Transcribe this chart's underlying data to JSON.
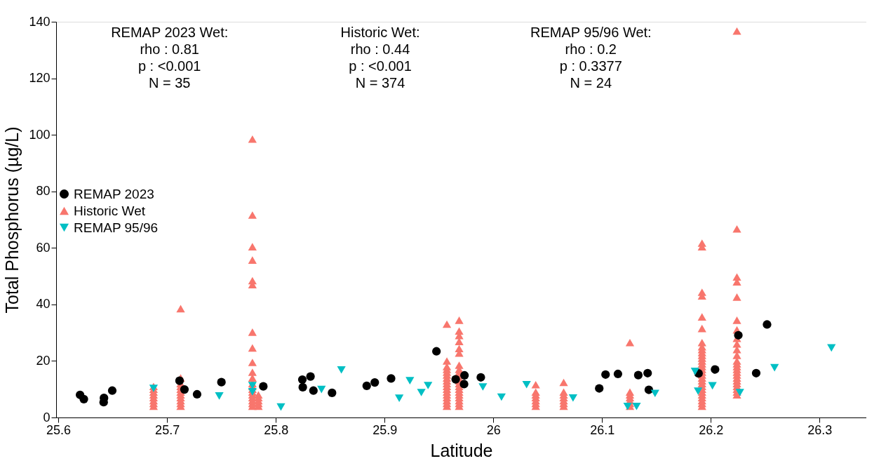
{
  "chart_data": {
    "type": "scatter",
    "xlabel": "Latitude",
    "ylabel": "Total Phosphorus (µg/L)",
    "xlim": [
      25.598,
      26.343
    ],
    "xticks": [
      25.6,
      25.7,
      25.8,
      25.9,
      26,
      26.1,
      26.2,
      26.3
    ],
    "ylim": [
      0,
      140
    ],
    "yticks": [
      0,
      20,
      40,
      60,
      80,
      100,
      120,
      140
    ],
    "grid": false,
    "legend": "left",
    "annotations": [
      "REMAP 2023 Wet:\nrho :  0.81\np :  <0.001\nN =  35",
      "Historic Wet:\nrho :  0.44\np :  <0.001\nN =  374",
      "REMAP 95/96 Wet:\nrho :  0.2\np :  0.3377\nN =  24"
    ],
    "series": [
      {
        "name": "REMAP 2023",
        "color": "#000000",
        "marker": "circle",
        "x": [
          25.62,
          25.6235,
          25.6417,
          25.642,
          25.6496,
          25.7115,
          25.716,
          25.7276,
          25.75,
          25.7885,
          25.8244,
          25.8248,
          25.8319,
          25.8346,
          25.8517,
          25.8836,
          25.891,
          25.906,
          25.9477,
          25.9654,
          25.9735,
          25.9731,
          25.9885,
          26.0974,
          26.1032,
          26.1146,
          26.1333,
          26.1419,
          26.143,
          26.1887,
          26.2039,
          26.2253,
          26.2417,
          26.2517
        ],
        "values": [
          8.0,
          6.5,
          5.4,
          6.9,
          9.5,
          13.0,
          9.9,
          8.2,
          12.5,
          11.0,
          13.4,
          10.7,
          14.5,
          9.5,
          8.7,
          11.2,
          12.4,
          13.8,
          23.4,
          13.5,
          14.9,
          11.8,
          14.2,
          10.3,
          15.2,
          15.4,
          15.0,
          15.7,
          9.8,
          15.6,
          17.0,
          29.1,
          15.7,
          32.9
        ]
      },
      {
        "name": "Historic Wet",
        "color": "#f8766d",
        "marker": "triangle",
        "x": [
          25.6876,
          25.6876,
          25.6876,
          25.6876,
          25.6876,
          25.6876,
          25.6876,
          25.6876,
          25.7125,
          25.7125,
          25.7125,
          25.7125,
          25.7125,
          25.7125,
          25.7125,
          25.7125,
          25.7125,
          25.7125,
          25.7125,
          25.7785,
          25.7785,
          25.7785,
          25.7785,
          25.7785,
          25.7785,
          25.7785,
          25.7785,
          25.7785,
          25.7785,
          25.7785,
          25.7785,
          25.7785,
          25.7785,
          25.7785,
          25.7785,
          25.7785,
          25.7785,
          25.7785,
          25.7785,
          25.784,
          25.784,
          25.784,
          25.784,
          25.784,
          25.9573,
          25.9573,
          25.9573,
          25.9573,
          25.9573,
          25.9573,
          25.9573,
          25.9573,
          25.9573,
          25.9573,
          25.9573,
          25.9573,
          25.9573,
          25.9573,
          25.9573,
          25.9573,
          25.9573,
          25.9686,
          25.9686,
          25.9686,
          25.9686,
          25.9686,
          25.9686,
          25.9686,
          25.9686,
          25.9686,
          25.9686,
          25.9686,
          25.9686,
          25.9686,
          25.9686,
          25.9686,
          25.9686,
          25.9686,
          25.9686,
          25.9686,
          25.9686,
          25.9686,
          26.039,
          26.039,
          26.039,
          26.039,
          26.039,
          26.039,
          26.039,
          26.0647,
          26.0647,
          26.0647,
          26.0647,
          26.0647,
          26.0647,
          26.0647,
          26.1256,
          26.1256,
          26.1256,
          26.1256,
          26.1256,
          26.1256,
          26.1256,
          26.1919,
          26.1919,
          26.1919,
          26.1919,
          26.1919,
          26.1919,
          26.1919,
          26.1919,
          26.1919,
          26.1919,
          26.1919,
          26.1919,
          26.1919,
          26.1919,
          26.1919,
          26.1919,
          26.1919,
          26.1919,
          26.1919,
          26.1919,
          26.1919,
          26.1919,
          26.1919,
          26.1919,
          26.1919,
          26.1919,
          26.1919,
          26.1919,
          26.1919,
          26.224,
          26.224,
          26.224,
          26.224,
          26.224,
          26.224,
          26.224,
          26.224,
          26.224,
          26.224,
          26.224,
          26.224,
          26.224,
          26.224,
          26.224,
          26.224,
          26.224,
          26.224,
          26.224,
          26.224,
          26.224,
          26.224,
          26.224,
          26.224
        ],
        "values": [
          4,
          5,
          6,
          7,
          8,
          9,
          10,
          11,
          4,
          5,
          6,
          7,
          8,
          9,
          10,
          11,
          12,
          14,
          38.5,
          4,
          5,
          6,
          7,
          8,
          9,
          10,
          11,
          12,
          14,
          16,
          19.5,
          24.6,
          30.2,
          47,
          48.4,
          55.7,
          60.4,
          71.6,
          98.5,
          4,
          5,
          6,
          7,
          8,
          4,
          5,
          6,
          7,
          8,
          9,
          10,
          11,
          12,
          13,
          14,
          15,
          16,
          17,
          18,
          20,
          33,
          4,
          5,
          6,
          7,
          8,
          9,
          10,
          11,
          12,
          13,
          14,
          15,
          16,
          17,
          18.5,
          22.8,
          24.4,
          26.9,
          29,
          30.6,
          34.4,
          4,
          5,
          6,
          7,
          8,
          9,
          11.6,
          4,
          5,
          6,
          7,
          8,
          9,
          12.4,
          4,
          5,
          6,
          7,
          8,
          9,
          26.5,
          4,
          5,
          6,
          7,
          8,
          9,
          10,
          11,
          12,
          13,
          14,
          15,
          16,
          17,
          18,
          19,
          20,
          21,
          22,
          23,
          24,
          25,
          26.5,
          31.5,
          35.6,
          43,
          44.3,
          60.4,
          61.7,
          8,
          9,
          10,
          11,
          12,
          13,
          14,
          15,
          16,
          17,
          18,
          19,
          20,
          22,
          24,
          26,
          28,
          31,
          34.4,
          42.6,
          48,
          49.7,
          66.7,
          136.7
        ]
      },
      {
        "name": "REMAP 95/96",
        "color": "#00bfc4",
        "marker": "triangle-down",
        "x": [
          25.6876,
          25.748,
          25.7785,
          25.7785,
          25.8047,
          25.842,
          25.8603,
          25.9135,
          25.9233,
          25.9338,
          25.94,
          25.9904,
          26.0075,
          26.0306,
          26.0733,
          26.1235,
          26.1317,
          26.1487,
          26.1855,
          26.1883,
          26.2015,
          26.2267,
          26.2586,
          26.3109
        ],
        "values": [
          10.3,
          7.6,
          11.3,
          9.1,
          3.7,
          9.9,
          16.8,
          6.8,
          13.0,
          8.8,
          11.3,
          10.8,
          7.2,
          11.6,
          6.9,
          3.9,
          3.9,
          8.5,
          16.3,
          9.3,
          11.2,
          8.8,
          17.6,
          24.6
        ]
      }
    ]
  }
}
